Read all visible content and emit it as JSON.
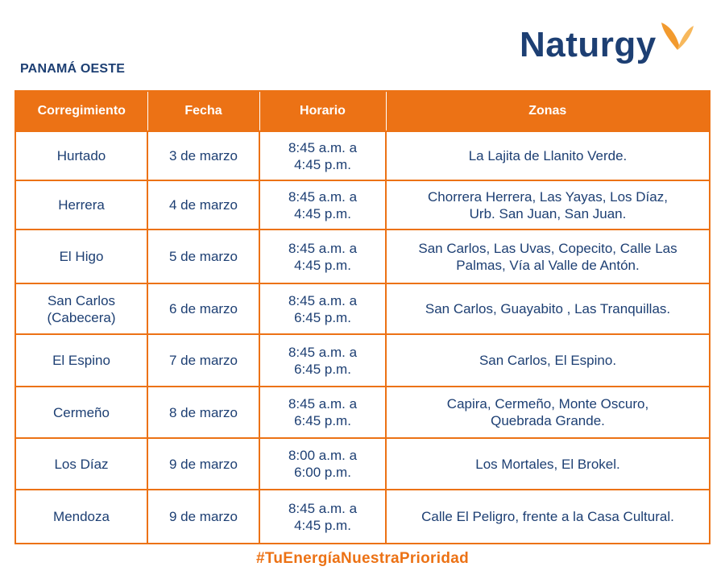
{
  "region": "PANAMÁ OESTE",
  "brand": {
    "name": "Naturgy",
    "color": "#1d3f73",
    "accent": "#f29a2e",
    "mark_icon": "butterfly-icon"
  },
  "table": {
    "headers": [
      "Corregimiento",
      "Fecha",
      "Horario",
      "Zonas"
    ],
    "rows": [
      {
        "corregimiento": [
          "Hurtado"
        ],
        "fecha": "3 de marzo",
        "horario": [
          "8:45 a.m. a",
          "4:45 p.m."
        ],
        "zonas": [
          "La Lajita de Llanito Verde."
        ]
      },
      {
        "corregimiento": [
          "Herrera"
        ],
        "fecha": "4 de marzo",
        "horario": [
          "8:45 a.m. a",
          "4:45 p.m."
        ],
        "zonas": [
          "Chorrera Herrera, Las Yayas, Los Díaz,",
          "Urb. San Juan, San Juan."
        ]
      },
      {
        "corregimiento": [
          "El Higo"
        ],
        "fecha": "5 de marzo",
        "horario": [
          "8:45 a.m. a",
          "4:45 p.m."
        ],
        "zonas": [
          "San Carlos, Las Uvas, Copecito, Calle Las",
          "Palmas, Vía al Valle de Antón."
        ]
      },
      {
        "corregimiento": [
          "San Carlos",
          "(Cabecera)"
        ],
        "fecha": "6 de marzo",
        "horario": [
          "8:45 a.m. a",
          "6:45 p.m."
        ],
        "zonas": [
          "San Carlos, Guayabito , Las Tranquillas."
        ]
      },
      {
        "corregimiento": [
          "El Espino"
        ],
        "fecha": "7 de marzo",
        "horario": [
          "8:45 a.m. a",
          "6:45 p.m."
        ],
        "zonas": [
          "San Carlos, El Espino."
        ]
      },
      {
        "corregimiento": [
          "Cermeño"
        ],
        "fecha": "8 de marzo",
        "horario": [
          "8:45 a.m. a",
          "6:45 p.m."
        ],
        "zonas": [
          "Capira, Cermeño, Monte Oscuro,",
          "Quebrada Grande."
        ]
      },
      {
        "corregimiento": [
          "Los Díaz"
        ],
        "fecha": "9 de marzo",
        "horario": [
          "8:00 a.m. a",
          "6:00 p.m."
        ],
        "zonas": [
          "Los Mortales, El Brokel."
        ]
      },
      {
        "corregimiento": [
          "Mendoza"
        ],
        "fecha": "9 de marzo",
        "horario": [
          "8:45 a.m. a",
          "4:45 p.m."
        ],
        "zonas": [
          "Calle El Peligro, frente a la Casa Cultural."
        ]
      }
    ]
  },
  "hashtag": "#TuEnergíaNuestraPrioridad",
  "colors": {
    "orange": "#ec7215",
    "navy": "#1d3f73"
  }
}
